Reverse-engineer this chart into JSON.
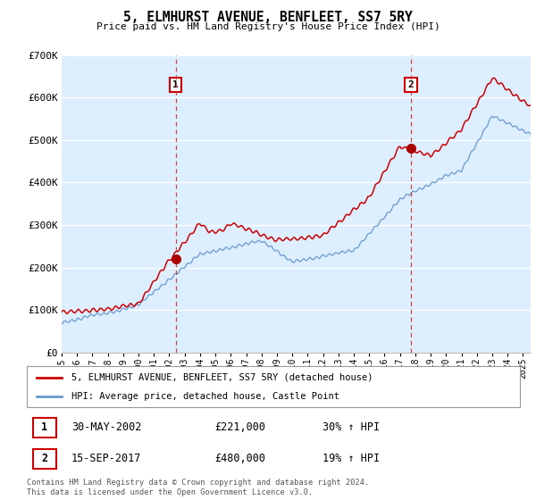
{
  "title": "5, ELMHURST AVENUE, BENFLEET, SS7 5RY",
  "subtitle": "Price paid vs. HM Land Registry's House Price Index (HPI)",
  "ylim": [
    0,
    700000
  ],
  "xlim_start": 1995.0,
  "xlim_end": 2025.5,
  "sale1_x": 2002.41,
  "sale1_y": 221000,
  "sale2_x": 2017.71,
  "sale2_y": 480000,
  "legend_line1": "5, ELMHURST AVENUE, BENFLEET, SS7 5RY (detached house)",
  "legend_line2": "HPI: Average price, detached house, Castle Point",
  "footer": "Contains HM Land Registry data © Crown copyright and database right 2024.\nThis data is licensed under the Open Government Licence v3.0.",
  "line_color_red": "#cc0000",
  "line_color_blue": "#6699cc",
  "bg_color": "#ffffff",
  "chart_bg_color": "#ddeeff",
  "grid_color": "#ffffff",
  "marker_color_red": "#aa0000",
  "dashed_color": "#cc3333"
}
